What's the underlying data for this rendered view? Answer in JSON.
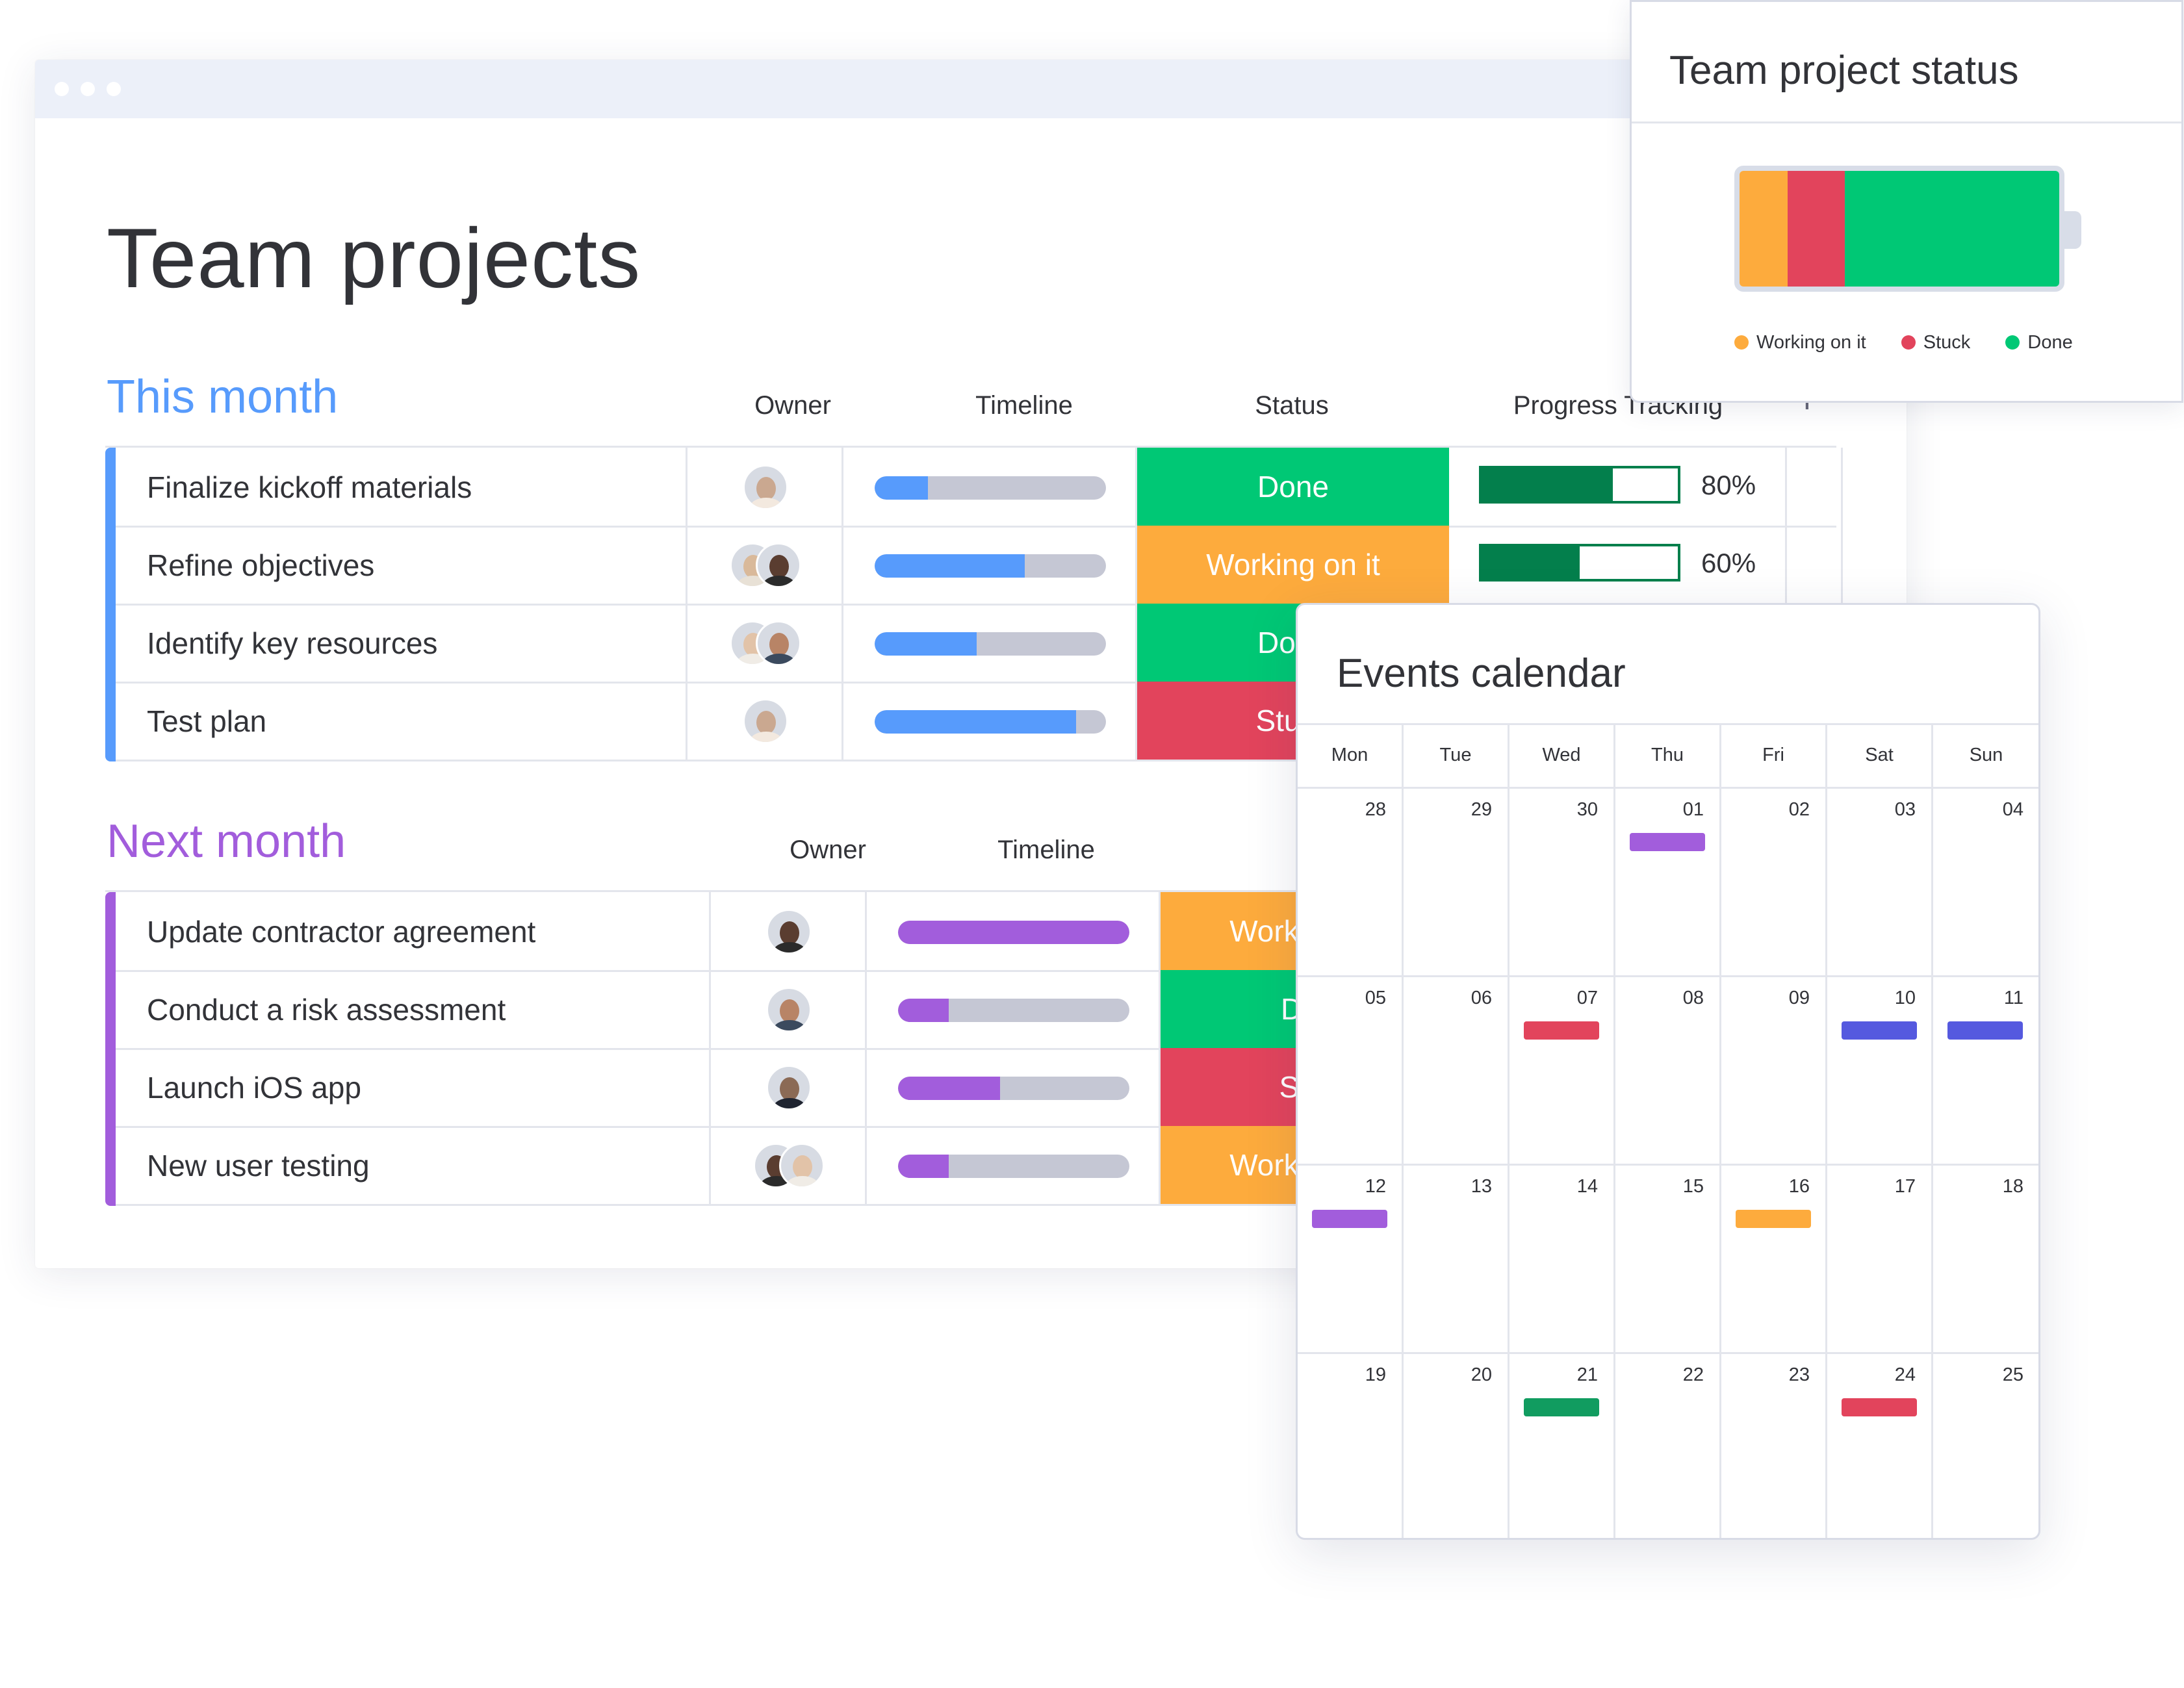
{
  "colors": {
    "done": "#00c875",
    "working": "#fdab3d",
    "stuck": "#e2445c",
    "this_month_accent": "#579bfc",
    "next_month_accent": "#a25ddc",
    "progress_dark": "#037f4c",
    "event_purple": "#a25ddc",
    "event_red": "#e2445c",
    "event_blue": "#5559df",
    "event_orange": "#fdab3d",
    "event_green": "#119c60"
  },
  "page": {
    "title": "Team projects"
  },
  "columns": {
    "owner": "Owner",
    "timeline": "Timeline",
    "status": "Status",
    "progress": "Progress Tracking",
    "add_icon": "+"
  },
  "this_month": {
    "title": "This month",
    "rows": [
      {
        "name": "Finalize kickoff materials",
        "owners": 1,
        "timeline": 0.23,
        "status": "Done",
        "status_key": "done",
        "progress_label": "80%",
        "progress": 0.67
      },
      {
        "name": "Refine objectives",
        "owners": 2,
        "timeline": 0.65,
        "status": "Working on it",
        "status_key": "working",
        "progress_label": "60%",
        "progress": 0.5
      },
      {
        "name": "Identify key resources",
        "owners": 2,
        "timeline": 0.44,
        "status": "Done",
        "status_key": "done"
      },
      {
        "name": "Test plan",
        "owners": 1,
        "timeline": 0.87,
        "status": "Stuck",
        "status_key": "stuck"
      }
    ]
  },
  "next_month": {
    "title": "Next month",
    "rows": [
      {
        "name": "Update contractor agreement",
        "owners": 1,
        "timeline": 1.0,
        "status": "Working on it",
        "status_key": "working"
      },
      {
        "name": "Conduct a risk assessment",
        "owners": 1,
        "timeline": 0.22,
        "status": "Done",
        "status_key": "done"
      },
      {
        "name": "Launch iOS app",
        "owners": 1,
        "timeline": 0.44,
        "status": "Stuck",
        "status_key": "stuck"
      },
      {
        "name": "New user testing",
        "owners": 2,
        "timeline": 0.22,
        "status": "Working on it",
        "status_key": "working"
      }
    ]
  },
  "status_card": {
    "title": "Team project status",
    "breakdown": {
      "working": 0.15,
      "stuck": 0.18,
      "done": 0.67
    },
    "legend": [
      {
        "label": "Working on it",
        "key": "working"
      },
      {
        "label": "Stuck",
        "key": "stuck"
      },
      {
        "label": "Done",
        "key": "done"
      }
    ]
  },
  "calendar": {
    "title": "Events calendar",
    "days": [
      "Mon",
      "Tue",
      "Wed",
      "Thu",
      "Fri",
      "Sat",
      "Sun"
    ],
    "weeks": [
      [
        "28",
        "29",
        "30",
        "01",
        "02",
        "03",
        "04"
      ],
      [
        "05",
        "06",
        "07",
        "08",
        "09",
        "10",
        "11"
      ],
      [
        "12",
        "13",
        "14",
        "15",
        "16",
        "17",
        "18"
      ],
      [
        "19",
        "20",
        "21",
        "22",
        "23",
        "24",
        "25"
      ]
    ],
    "events": [
      {
        "week": 0,
        "day": 3,
        "color": "#a25ddc"
      },
      {
        "week": 1,
        "day": 2,
        "color": "#e2445c"
      },
      {
        "week": 1,
        "day": 5,
        "color": "#5559df"
      },
      {
        "week": 1,
        "day": 6,
        "color": "#5559df"
      },
      {
        "week": 2,
        "day": 0,
        "color": "#a25ddc"
      },
      {
        "week": 2,
        "day": 4,
        "color": "#fdab3d"
      },
      {
        "week": 3,
        "day": 2,
        "color": "#119c60"
      },
      {
        "week": 3,
        "day": 5,
        "color": "#e2445c"
      }
    ]
  }
}
